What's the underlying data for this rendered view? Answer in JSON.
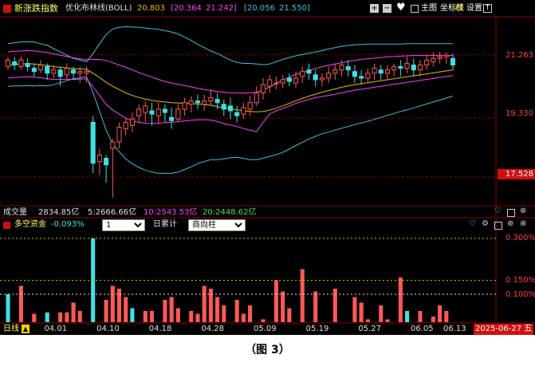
{
  "header": {
    "title": "新涨跌指数",
    "indicator_name": "优化布林线(BOLL)",
    "values": [
      "20.803",
      "[20.364",
      "21.242]",
      "[20.056",
      "21.550]"
    ],
    "value_colors": [
      "#e0c000",
      "#ff40ff",
      "#ff40ff",
      "#40c0e0",
      "#40c0e0"
    ],
    "menu": {
      "main": "主图",
      "coord": "坐标线",
      "right": "权",
      "settings": "设置"
    }
  },
  "price_axis": {
    "labels": [
      "21.263",
      "19.330",
      "17.528"
    ],
    "levels": [
      21.263,
      19.33,
      17.528
    ]
  },
  "volume_bar": {
    "label": "成交量",
    "total": "2834.85亿",
    "ma5": "5:2666.66亿",
    "ma10": "10:2543.53亿",
    "ma20": "20:2448.62亿"
  },
  "sub_panel": {
    "title": "多空资金",
    "value": "-0.093%",
    "period_select": "1",
    "accum_label": "日累计",
    "style_select": "商向柱",
    "axis_labels": [
      "0.300%",
      "0.150%",
      "0.100%"
    ]
  },
  "time_axis": {
    "period_label": "日线",
    "dates": [
      "04.01",
      "04.10",
      "04.18",
      "04.28",
      "05.09",
      "05.19",
      "05.27",
      "06.05",
      "06.13"
    ],
    "current_date": "2025-06-27 五"
  },
  "colors": {
    "up": "#ff5858",
    "down": "#40e0e0",
    "mid": "#e0c000",
    "inner_band": "#ff40ff",
    "outer_band": "#40c0e0",
    "grid": "#8b0000",
    "axis_text": "#ff4040"
  },
  "chart_data": {
    "type": "candlestick",
    "candles": [
      [
        20.9,
        21.1,
        20.8,
        21.2
      ],
      [
        21.05,
        20.95,
        20.8,
        21.2
      ],
      [
        20.9,
        21.1,
        20.8,
        21.2
      ],
      [
        21.0,
        20.9,
        20.75,
        21.15
      ],
      [
        20.85,
        20.75,
        20.6,
        21.0
      ],
      [
        20.8,
        20.95,
        20.7,
        21.1
      ],
      [
        20.9,
        20.7,
        20.5,
        21.0
      ],
      [
        20.7,
        20.8,
        20.55,
        20.95
      ],
      [
        20.8,
        20.6,
        20.3,
        20.9
      ],
      [
        20.65,
        20.85,
        20.5,
        21.0
      ],
      [
        20.8,
        20.7,
        20.5,
        20.9
      ],
      [
        20.7,
        20.75,
        20.4,
        20.9
      ],
      [
        20.7,
        20.75,
        20.4,
        20.9
      ],
      [
        19.2,
        17.95,
        17.65,
        19.4
      ],
      [
        18.0,
        18.2,
        17.6,
        18.4
      ],
      [
        18.1,
        17.9,
        17.35,
        18.2
      ],
      [
        18.4,
        18.6,
        16.9,
        18.7
      ],
      [
        18.6,
        19.05,
        18.4,
        19.2
      ],
      [
        19.0,
        19.2,
        18.8,
        19.35
      ],
      [
        19.1,
        19.3,
        18.9,
        19.5
      ],
      [
        19.4,
        19.6,
        19.2,
        19.75
      ],
      [
        19.5,
        19.7,
        19.2,
        19.85
      ],
      [
        19.55,
        19.45,
        19.1,
        19.8
      ],
      [
        19.4,
        19.6,
        19.15,
        19.8
      ],
      [
        19.6,
        19.5,
        19.2,
        19.75
      ],
      [
        19.35,
        19.25,
        19.0,
        19.65
      ],
      [
        19.3,
        19.6,
        19.2,
        19.75
      ],
      [
        19.6,
        19.8,
        19.4,
        19.95
      ],
      [
        19.75,
        19.85,
        19.5,
        20.0
      ],
      [
        19.85,
        19.8,
        19.6,
        20.05
      ],
      [
        19.75,
        19.85,
        19.55,
        20.05
      ],
      [
        19.85,
        19.95,
        19.7,
        20.2
      ],
      [
        19.9,
        19.8,
        19.6,
        20.1
      ],
      [
        19.75,
        19.6,
        19.4,
        19.9
      ],
      [
        19.7,
        19.55,
        19.3,
        19.95
      ],
      [
        19.5,
        19.4,
        19.2,
        19.7
      ],
      [
        19.45,
        19.65,
        19.3,
        19.8
      ],
      [
        19.6,
        19.8,
        19.4,
        20.0
      ],
      [
        19.8,
        20.1,
        19.7,
        20.3
      ],
      [
        20.1,
        20.35,
        19.9,
        20.55
      ],
      [
        20.3,
        20.5,
        20.1,
        20.65
      ],
      [
        20.4,
        20.4,
        20.2,
        20.6
      ],
      [
        20.4,
        20.5,
        20.25,
        20.65
      ],
      [
        20.55,
        20.45,
        20.3,
        20.7
      ],
      [
        20.4,
        20.55,
        20.25,
        20.75
      ],
      [
        20.6,
        20.75,
        20.4,
        20.9
      ],
      [
        20.8,
        20.7,
        20.5,
        21.0
      ],
      [
        20.65,
        20.5,
        20.3,
        20.8
      ],
      [
        20.5,
        20.55,
        20.3,
        20.7
      ],
      [
        20.55,
        20.7,
        20.4,
        20.9
      ],
      [
        20.7,
        20.8,
        20.5,
        21.0
      ],
      [
        20.8,
        20.95,
        20.6,
        21.1
      ],
      [
        20.9,
        20.8,
        20.6,
        21.1
      ],
      [
        20.75,
        20.6,
        20.4,
        20.95
      ],
      [
        20.6,
        20.55,
        20.35,
        20.8
      ],
      [
        20.55,
        20.7,
        20.4,
        20.85
      ],
      [
        20.7,
        20.85,
        20.5,
        21.0
      ],
      [
        20.8,
        20.7,
        20.5,
        20.95
      ],
      [
        20.7,
        20.8,
        20.5,
        20.95
      ],
      [
        20.8,
        20.9,
        20.6,
        21.0
      ],
      [
        20.9,
        20.85,
        20.6,
        21.1
      ],
      [
        20.85,
        21.0,
        20.7,
        21.2
      ],
      [
        20.95,
        20.8,
        20.6,
        21.15
      ],
      [
        20.8,
        20.95,
        20.6,
        21.1
      ],
      [
        20.95,
        21.1,
        20.8,
        21.25
      ],
      [
        21.05,
        21.15,
        20.9,
        21.35
      ],
      [
        21.15,
        21.2,
        21.0,
        21.35
      ],
      [
        21.2,
        21.25,
        21.0,
        21.35
      ],
      [
        21.15,
        20.95,
        20.8,
        21.3
      ]
    ],
    "boll_upper": [
      21.6,
      21.63,
      21.65,
      21.66,
      21.65,
      21.6,
      21.55,
      21.45,
      21.35,
      21.25,
      21.15,
      21.1,
      21.05,
      21.3,
      21.6,
      21.88,
      22.05,
      22.1,
      22.12,
      22.11,
      22.1,
      22.08,
      22.06,
      22.04,
      22.0,
      21.96,
      21.9,
      21.8,
      21.7,
      21.58,
      21.48,
      21.38,
      21.3,
      21.2,
      21.1,
      21.03,
      21.0,
      21.0,
      20.98,
      20.96,
      20.98,
      21.05,
      21.12,
      21.18,
      21.23,
      21.27,
      21.31,
      21.35,
      21.39,
      21.44,
      21.48,
      21.52,
      21.55,
      21.57,
      21.58,
      21.59,
      21.59,
      21.59,
      21.59,
      21.59,
      21.59,
      21.6,
      21.6,
      21.6,
      21.6,
      21.6,
      21.6,
      21.6,
      21.6
    ],
    "boll_mid": [
      20.95,
      20.97,
      20.98,
      20.99,
      20.98,
      20.96,
      20.93,
      20.9,
      20.88,
      20.86,
      20.84,
      20.83,
      20.82,
      20.7,
      20.57,
      20.42,
      20.3,
      20.2,
      20.1,
      20.02,
      19.96,
      19.91,
      19.87,
      19.84,
      19.82,
      19.8,
      19.79,
      19.78,
      19.77,
      19.76,
      19.74,
      19.72,
      19.68,
      19.64,
      19.61,
      19.58,
      19.55,
      19.53,
      19.52,
      19.53,
      19.57,
      19.63,
      19.7,
      19.78,
      19.86,
      19.93,
      20.0,
      20.06,
      20.12,
      20.17,
      20.22,
      20.27,
      20.31,
      20.35,
      20.38,
      20.41,
      20.44,
      20.47,
      20.5,
      20.53,
      20.56,
      20.59,
      20.62,
      20.65,
      20.68,
      20.71,
      20.74,
      20.77,
      20.8
    ],
    "boll_inner_upper": [
      21.35,
      21.37,
      21.38,
      21.39,
      21.38,
      21.36,
      21.33,
      21.29,
      21.25,
      21.21,
      21.17,
      21.14,
      21.11,
      21.12,
      21.12,
      21.09,
      21.02,
      20.95,
      20.88,
      20.8,
      20.72,
      20.65,
      20.58,
      20.51,
      20.45,
      20.4,
      20.36,
      20.32,
      20.28,
      20.24,
      20.2,
      20.17,
      20.14,
      20.12,
      20.1,
      20.09,
      20.09,
      20.1,
      20.12,
      20.18,
      20.28,
      20.38,
      20.49,
      20.58,
      20.66,
      20.72,
      20.78,
      20.84,
      20.9,
      20.94,
      20.98,
      21.02,
      21.06,
      21.09,
      21.12,
      21.14,
      21.16,
      21.18,
      21.2,
      21.21,
      21.22,
      21.23,
      21.24,
      21.24,
      21.24,
      21.24,
      21.24,
      21.24,
      21.24
    ],
    "boll_inner_lower": [
      20.55,
      20.57,
      20.58,
      20.59,
      20.58,
      20.56,
      20.53,
      20.51,
      20.51,
      20.51,
      20.51,
      20.52,
      20.53,
      20.28,
      20.02,
      19.75,
      19.58,
      19.45,
      19.32,
      19.24,
      19.2,
      19.17,
      19.16,
      19.17,
      19.19,
      19.2,
      19.22,
      19.24,
      19.26,
      19.28,
      19.28,
      19.27,
      19.22,
      19.16,
      19.12,
      19.07,
      19.01,
      18.96,
      18.92,
      19.2,
      19.45,
      19.55,
      19.62,
      19.7,
      19.78,
      19.84,
      19.9,
      19.95,
      19.99,
      20.02,
      20.06,
      20.1,
      20.14,
      20.18,
      20.21,
      20.24,
      20.27,
      20.3,
      20.33,
      20.36,
      20.39,
      20.42,
      20.45,
      20.48,
      20.51,
      20.54,
      20.57,
      20.6,
      20.63
    ],
    "boll_lower": [
      20.3,
      20.31,
      20.31,
      20.32,
      20.31,
      20.32,
      20.31,
      20.35,
      20.41,
      20.47,
      20.53,
      20.56,
      20.59,
      20.1,
      19.54,
      18.96,
      18.55,
      18.3,
      18.08,
      17.93,
      17.82,
      17.74,
      17.68,
      17.64,
      17.64,
      17.64,
      17.68,
      17.76,
      17.84,
      17.94,
      18.0,
      18.06,
      18.06,
      18.08,
      18.12,
      18.13,
      18.1,
      18.06,
      18.06,
      18.1,
      18.16,
      18.21,
      18.28,
      18.38,
      18.49,
      18.59,
      18.69,
      18.77,
      18.85,
      18.9,
      18.96,
      19.02,
      19.07,
      19.13,
      19.18,
      19.23,
      19.29,
      19.35,
      19.41,
      19.47,
      19.53,
      19.58,
      19.64,
      19.7,
      19.76,
      19.82,
      19.88,
      19.94,
      20.0
    ],
    "flow_bars": [
      0.1,
      0.0,
      0.13,
      0.0,
      0.03,
      0.0,
      0.035,
      0.0,
      0.035,
      0.035,
      0.07,
      0.04,
      0.0,
      0.3,
      0.0,
      0.08,
      0.13,
      0.12,
      0.09,
      0.05,
      0.0,
      0.04,
      0.04,
      0.0,
      0.08,
      0.09,
      0.05,
      0.0,
      0.04,
      0.03,
      0.13,
      0.12,
      0.09,
      0.06,
      0.0,
      0.08,
      0.03,
      0.06,
      0.0,
      0.01,
      0.0,
      0.15,
      0.11,
      0.05,
      0.0,
      0.19,
      0.0,
      0.11,
      0.0,
      0.0,
      0.12,
      0.0,
      0.0,
      0.09,
      0.07,
      0.01,
      0.0,
      0.06,
      0.01,
      0.0,
      0.16,
      0.04,
      0.0,
      0.04,
      0.0,
      0.02,
      0.06,
      0.04,
      0.0
    ],
    "flow_dir": [
      "d",
      "d",
      "u",
      "u",
      "u",
      "d",
      "d",
      "u",
      "u",
      "u",
      "u",
      "u",
      "u",
      "d",
      "u",
      "u",
      "u",
      "u",
      "u",
      "d",
      "u",
      "u",
      "u",
      "d",
      "u",
      "u",
      "u",
      "u",
      "u",
      "u",
      "u",
      "u",
      "u",
      "u",
      "u",
      "u",
      "u",
      "u",
      "u",
      "u",
      "u",
      "u",
      "u",
      "u",
      "u",
      "u",
      "u",
      "u",
      "u",
      "u",
      "u",
      "u",
      "u",
      "u",
      "u",
      "u",
      "u",
      "u",
      "u",
      "u",
      "u",
      "d",
      "u",
      "u",
      "u",
      "u",
      "u",
      "u",
      "d"
    ],
    "ylim": [
      16.7,
      22.4
    ]
  },
  "figure_caption": "（图 3）"
}
